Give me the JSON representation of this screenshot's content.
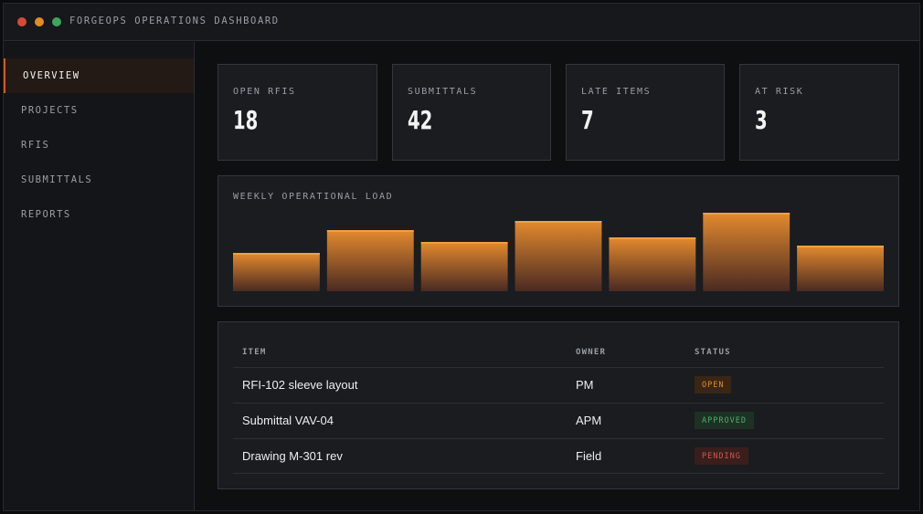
{
  "window": {
    "title": "FORGEOPS OPERATIONS DASHBOARD",
    "controls": [
      {
        "name": "close",
        "color": "#d94a35"
      },
      {
        "name": "minimize",
        "color": "#e58a25"
      },
      {
        "name": "maximize",
        "color": "#3fa55c"
      }
    ]
  },
  "sidebar": {
    "items": [
      {
        "label": "OVERVIEW",
        "active": true
      },
      {
        "label": "PROJECTS",
        "active": false
      },
      {
        "label": "RFIS",
        "active": false
      },
      {
        "label": "SUBMITTALS",
        "active": false
      },
      {
        "label": "REPORTS",
        "active": false
      }
    ]
  },
  "stats": [
    {
      "label": "OPEN RFIS",
      "value": "18"
    },
    {
      "label": "SUBMITTALS",
      "value": "42"
    },
    {
      "label": "LATE ITEMS",
      "value": "7"
    },
    {
      "label": "AT RISK",
      "value": "3"
    }
  ],
  "chart_data": {
    "type": "bar",
    "title": "WEEKLY OPERATIONAL LOAD",
    "values": [
      42,
      67,
      54,
      77,
      59,
      86,
      50
    ],
    "ylim": [
      0,
      100
    ],
    "colors": {
      "top": "#e48a2e",
      "bottom": "#4a2a22",
      "edge": "#f0a040"
    }
  },
  "table": {
    "headers": {
      "item": "ITEM",
      "owner": "OWNER",
      "status": "STATUS"
    },
    "rows": [
      {
        "item": "RFI-102 sleeve layout",
        "owner": "PM",
        "status": "OPEN",
        "status_kind": "open"
      },
      {
        "item": "Submittal VAV-04",
        "owner": "APM",
        "status": "APPROVED",
        "status_kind": "approved"
      },
      {
        "item": "Drawing M-301 rev",
        "owner": "Field",
        "status": "PENDING",
        "status_kind": "pending"
      }
    ]
  },
  "colors": {
    "accent": "#d05a2a",
    "background": "#0e0f11",
    "panel": "#1a1c20"
  }
}
